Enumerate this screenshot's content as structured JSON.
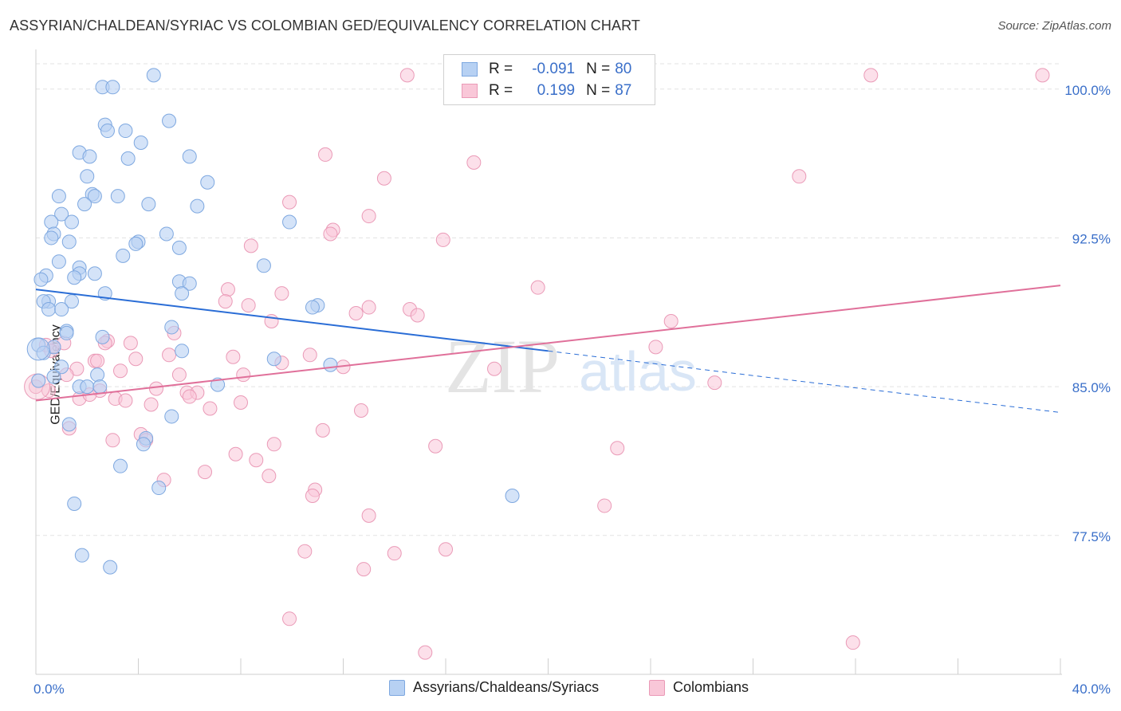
{
  "header": {
    "title": "ASSYRIAN/CHALDEAN/SYRIAC VS COLOMBIAN GED/EQUIVALENCY CORRELATION CHART",
    "source": "Source: ZipAtlas.com"
  },
  "watermark": {
    "zip": "ZIP",
    "atlas": "atlas"
  },
  "legend_top": {
    "row1": {
      "r_label": "R =",
      "r_value": "-0.091",
      "n_label": "N =",
      "n_value": "80"
    },
    "row2": {
      "r_label": "R =",
      "r_value": "0.199",
      "n_label": "N =",
      "n_value": "87"
    }
  },
  "legend_bottom": {
    "blue": "Assyrians/Chaldeans/Syriacs",
    "pink": "Colombians"
  },
  "colors": {
    "blue_fill": "#b7d1f3",
    "blue_stroke": "#7ea8e0",
    "blue_line": "#2a6dd6",
    "pink_fill": "#f9c7d8",
    "pink_stroke": "#ea9ab7",
    "pink_line": "#e0709a",
    "tick_text": "#3a6fc9",
    "grid": "#e3e3e3"
  },
  "chart_data": {
    "type": "scatter",
    "title": "ASSYRIAN/CHALDEAN/SYRIAC VS COLOMBIAN GED/EQUIVALENCY CORRELATION CHART",
    "xlabel": "",
    "ylabel": "GED/Equivalency",
    "xlim": [
      0,
      40
    ],
    "ylim": [
      70.5,
      102
    ],
    "x_tick_labels": [
      "0.0%",
      "40.0%"
    ],
    "y_ticks": [
      {
        "value": 100,
        "label": "100.0%"
      },
      {
        "value": 92.5,
        "label": "92.5%"
      },
      {
        "value": 85,
        "label": "85.0%"
      },
      {
        "value": 77.5,
        "label": "77.5%"
      }
    ],
    "series": [
      {
        "name": "Assyrians/Chaldeans/Syriacs",
        "R": -0.091,
        "N": 80,
        "trend": {
          "x0": 0,
          "y0": 89.9,
          "x1": 20,
          "y1": 86.8,
          "dashed_to_x": 40,
          "dashed_to_y": 83.7
        },
        "points": [
          [
            4.6,
            100.7
          ],
          [
            2.6,
            100.1
          ],
          [
            3.0,
            100.1
          ],
          [
            5.2,
            98.4
          ],
          [
            2.7,
            98.2
          ],
          [
            2.8,
            97.9
          ],
          [
            3.5,
            97.9
          ],
          [
            4.1,
            97.3
          ],
          [
            1.7,
            96.8
          ],
          [
            2.1,
            96.6
          ],
          [
            3.6,
            96.5
          ],
          [
            6.0,
            96.6
          ],
          [
            2.0,
            95.6
          ],
          [
            6.7,
            95.3
          ],
          [
            2.2,
            94.7
          ],
          [
            2.3,
            94.6
          ],
          [
            0.9,
            94.6
          ],
          [
            3.2,
            94.6
          ],
          [
            1.9,
            94.2
          ],
          [
            4.4,
            94.2
          ],
          [
            6.3,
            94.1
          ],
          [
            1.0,
            93.7
          ],
          [
            0.6,
            93.3
          ],
          [
            1.4,
            93.3
          ],
          [
            9.9,
            93.3
          ],
          [
            5.1,
            92.7
          ],
          [
            0.7,
            92.7
          ],
          [
            0.6,
            92.5
          ],
          [
            1.3,
            92.3
          ],
          [
            4.0,
            92.3
          ],
          [
            3.9,
            92.2
          ],
          [
            5.6,
            92.0
          ],
          [
            3.4,
            91.6
          ],
          [
            0.9,
            91.3
          ],
          [
            8.9,
            91.1
          ],
          [
            1.7,
            91.0
          ],
          [
            1.7,
            90.7
          ],
          [
            2.3,
            90.7
          ],
          [
            0.4,
            90.6
          ],
          [
            1.5,
            90.5
          ],
          [
            0.2,
            90.4
          ],
          [
            5.6,
            90.3
          ],
          [
            6.0,
            90.2
          ],
          [
            5.7,
            89.7
          ],
          [
            2.7,
            89.7
          ],
          [
            0.5,
            89.3
          ],
          [
            1.4,
            89.3
          ],
          [
            0.3,
            89.3
          ],
          [
            11.0,
            89.1
          ],
          [
            10.8,
            89.0
          ],
          [
            0.5,
            88.9
          ],
          [
            1.0,
            88.9
          ],
          [
            5.3,
            88.0
          ],
          [
            1.2,
            87.8
          ],
          [
            1.2,
            87.7
          ],
          [
            2.6,
            87.5
          ],
          [
            0.1,
            87.1
          ],
          [
            0.7,
            87.0
          ],
          [
            0.3,
            86.7
          ],
          [
            5.7,
            86.8
          ],
          [
            9.3,
            86.4
          ],
          [
            11.5,
            86.1
          ],
          [
            1.0,
            86.0
          ],
          [
            0.7,
            85.5
          ],
          [
            2.4,
            85.6
          ],
          [
            7.1,
            85.1
          ],
          [
            1.7,
            85.0
          ],
          [
            2.0,
            85.0
          ],
          [
            2.5,
            85.0
          ],
          [
            5.3,
            83.5
          ],
          [
            1.3,
            83.1
          ],
          [
            4.3,
            82.4
          ],
          [
            4.2,
            82.1
          ],
          [
            3.3,
            81.0
          ],
          [
            4.8,
            79.9
          ],
          [
            18.6,
            79.5
          ],
          [
            1.5,
            79.1
          ],
          [
            1.8,
            76.5
          ],
          [
            2.9,
            75.9
          ],
          [
            0.1,
            85.3
          ]
        ]
      },
      {
        "name": "Colombians",
        "R": 0.199,
        "N": 87,
        "trend": {
          "x0": 0,
          "y0": 84.3,
          "x1": 40,
          "y1": 90.1
        },
        "points": [
          [
            14.5,
            100.7
          ],
          [
            32.6,
            100.7
          ],
          [
            39.3,
            100.7
          ],
          [
            11.3,
            96.7
          ],
          [
            17.1,
            96.3
          ],
          [
            13.6,
            95.5
          ],
          [
            29.8,
            95.6
          ],
          [
            9.9,
            94.3
          ],
          [
            13.0,
            93.6
          ],
          [
            11.6,
            92.9
          ],
          [
            11.5,
            92.7
          ],
          [
            15.9,
            92.4
          ],
          [
            8.4,
            92.1
          ],
          [
            19.6,
            90.0
          ],
          [
            7.5,
            89.9
          ],
          [
            9.6,
            89.7
          ],
          [
            7.4,
            89.3
          ],
          [
            8.3,
            89.1
          ],
          [
            13.0,
            89.0
          ],
          [
            12.5,
            88.7
          ],
          [
            14.6,
            88.9
          ],
          [
            14.9,
            88.6
          ],
          [
            9.2,
            88.3
          ],
          [
            24.8,
            88.3
          ],
          [
            5.4,
            87.7
          ],
          [
            2.8,
            87.3
          ],
          [
            2.7,
            87.2
          ],
          [
            3.7,
            87.2
          ],
          [
            1.1,
            87.2
          ],
          [
            0.4,
            87.1
          ],
          [
            0.7,
            87.0
          ],
          [
            24.2,
            87.0
          ],
          [
            0.6,
            86.8
          ],
          [
            5.2,
            86.6
          ],
          [
            7.7,
            86.5
          ],
          [
            10.7,
            86.6
          ],
          [
            3.9,
            86.4
          ],
          [
            2.3,
            86.3
          ],
          [
            2.4,
            86.3
          ],
          [
            9.6,
            86.2
          ],
          [
            12.0,
            86.0
          ],
          [
            1.6,
            85.9
          ],
          [
            3.3,
            85.8
          ],
          [
            17.9,
            85.9
          ],
          [
            8.1,
            85.6
          ],
          [
            5.6,
            85.6
          ],
          [
            0.0,
            85.0
          ],
          [
            26.5,
            85.2
          ],
          [
            4.7,
            84.9
          ],
          [
            2.5,
            84.8
          ],
          [
            5.9,
            84.7
          ],
          [
            6.3,
            84.7
          ],
          [
            6.0,
            84.5
          ],
          [
            1.7,
            84.4
          ],
          [
            3.1,
            84.4
          ],
          [
            3.5,
            84.3
          ],
          [
            8.0,
            84.2
          ],
          [
            4.5,
            84.1
          ],
          [
            6.8,
            83.9
          ],
          [
            12.7,
            83.8
          ],
          [
            1.3,
            82.9
          ],
          [
            11.2,
            82.8
          ],
          [
            4.1,
            82.6
          ],
          [
            3.0,
            82.3
          ],
          [
            4.3,
            82.3
          ],
          [
            9.3,
            82.1
          ],
          [
            15.6,
            82.0
          ],
          [
            22.7,
            81.9
          ],
          [
            7.8,
            81.6
          ],
          [
            8.6,
            81.3
          ],
          [
            6.6,
            80.7
          ],
          [
            9.1,
            80.5
          ],
          [
            5.0,
            80.3
          ],
          [
            10.9,
            79.8
          ],
          [
            10.8,
            79.5
          ],
          [
            22.2,
            79.0
          ],
          [
            13.0,
            78.5
          ],
          [
            10.5,
            76.7
          ],
          [
            16.0,
            76.8
          ],
          [
            14.0,
            76.6
          ],
          [
            12.8,
            75.8
          ],
          [
            9.9,
            73.3
          ],
          [
            15.2,
            71.6
          ],
          [
            31.9,
            72.1
          ],
          [
            1.2,
            85.6
          ],
          [
            0.5,
            84.8
          ],
          [
            2.1,
            84.6
          ]
        ]
      }
    ]
  }
}
